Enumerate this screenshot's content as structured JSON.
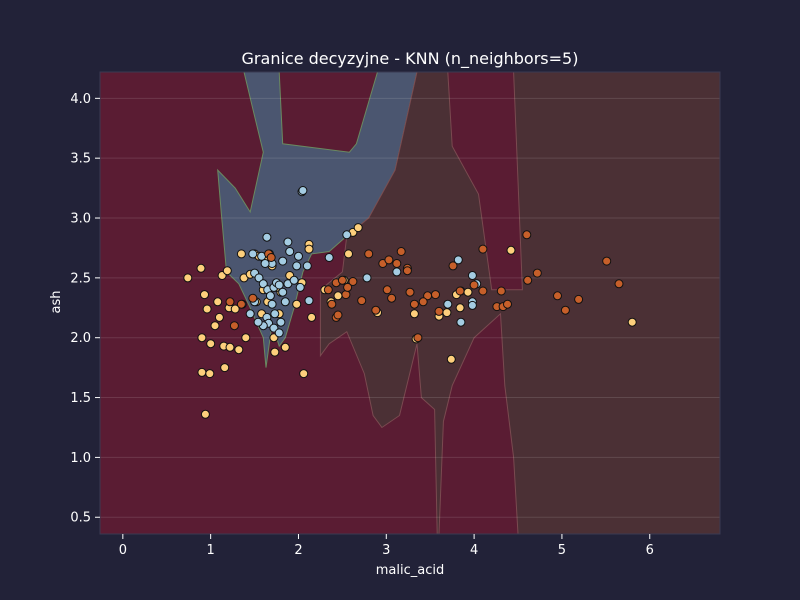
{
  "chart_data": {
    "type": "scatter",
    "title": "Granice decyzyjne - KNN (n_neighbors=5)",
    "xlabel": "malic_acid",
    "ylabel": "ash",
    "xlim": [
      -0.26,
      6.8
    ],
    "ylim": [
      0.36,
      4.22
    ],
    "xticks": [
      0,
      1,
      2,
      3,
      4,
      5,
      6
    ],
    "yticks": [
      0.5,
      1.0,
      1.5,
      2.0,
      2.5,
      3.0,
      3.5,
      4.0
    ],
    "xtick_labels": [
      "0",
      "1",
      "2",
      "3",
      "4",
      "5",
      "6"
    ],
    "ytick_labels": [
      "0.5",
      "1.0",
      "1.5",
      "2.0",
      "2.5",
      "3.0",
      "3.5",
      "4.0"
    ],
    "grid": true,
    "colors": {
      "background": "#222238",
      "region_class_0": "#5a1c33",
      "region_class_1": "#4b5670",
      "region_class_2": "#4b3035",
      "point_class_0": "#fdcf7c",
      "point_class_1": "#a4cce2",
      "point_class_2": "#c65f2a",
      "text": "#ffffff"
    },
    "regions": [
      {
        "class": 1,
        "polygon": [
          [
            1.38,
            4.22
          ],
          [
            1.78,
            4.22
          ],
          [
            1.82,
            3.62
          ],
          [
            2.58,
            3.55
          ],
          [
            2.66,
            3.62
          ],
          [
            2.9,
            4.22
          ],
          [
            3.35,
            4.22
          ],
          [
            3.1,
            3.4
          ],
          [
            2.8,
            3.0
          ],
          [
            2.55,
            2.85
          ],
          [
            2.35,
            2.72
          ],
          [
            2.15,
            2.7
          ],
          [
            2.05,
            2.55
          ],
          [
            1.95,
            2.25
          ],
          [
            1.85,
            2.0
          ],
          [
            1.78,
            1.93
          ],
          [
            1.7,
            2.12
          ],
          [
            1.63,
            1.75
          ],
          [
            1.6,
            2.0
          ],
          [
            1.45,
            2.25
          ],
          [
            1.32,
            2.45
          ],
          [
            1.18,
            2.55
          ],
          [
            1.12,
            3.05
          ],
          [
            1.08,
            3.4
          ],
          [
            1.28,
            3.25
          ],
          [
            1.45,
            3.05
          ],
          [
            1.6,
            3.55
          ],
          [
            1.5,
            3.85
          ]
        ]
      },
      {
        "class": 2,
        "polygon": [
          [
            3.35,
            4.22
          ],
          [
            3.7,
            4.22
          ],
          [
            3.75,
            3.6
          ],
          [
            4.05,
            3.2
          ],
          [
            4.2,
            2.4
          ],
          [
            4.55,
            2.4
          ],
          [
            4.45,
            4.22
          ],
          [
            6.8,
            4.22
          ],
          [
            6.8,
            0.36
          ],
          [
            4.5,
            0.36
          ],
          [
            4.45,
            1.0
          ],
          [
            4.35,
            1.6
          ],
          [
            4.3,
            2.2
          ],
          [
            4.0,
            2.0
          ],
          [
            3.75,
            1.6
          ],
          [
            3.65,
            1.3
          ],
          [
            3.6,
            0.36
          ],
          [
            3.58,
            0.36
          ],
          [
            3.55,
            1.4
          ],
          [
            3.4,
            1.5
          ],
          [
            3.35,
            1.95
          ],
          [
            3.15,
            1.35
          ],
          [
            2.95,
            1.25
          ],
          [
            2.85,
            1.35
          ],
          [
            2.75,
            1.7
          ],
          [
            2.55,
            2.05
          ],
          [
            2.35,
            1.95
          ],
          [
            2.25,
            1.85
          ],
          [
            2.25,
            2.4
          ],
          [
            2.5,
            2.55
          ],
          [
            2.55,
            2.85
          ],
          [
            2.8,
            3.0
          ],
          [
            3.1,
            3.4
          ]
        ]
      }
    ],
    "series": [
      {
        "name": "class_0",
        "points": [
          [
            0.74,
            2.5
          ],
          [
            0.89,
            2.58
          ],
          [
            0.93,
            2.36
          ],
          [
            0.9,
            2.0
          ],
          [
            1.0,
            1.95
          ],
          [
            0.96,
            2.24
          ],
          [
            1.08,
            2.3
          ],
          [
            1.05,
            2.1
          ],
          [
            1.1,
            2.17
          ],
          [
            1.13,
            2.52
          ],
          [
            1.19,
            2.56
          ],
          [
            1.21,
            2.25
          ],
          [
            1.15,
            1.93
          ],
          [
            1.22,
            1.92
          ],
          [
            1.28,
            2.24
          ],
          [
            1.32,
            1.9
          ],
          [
            1.35,
            2.7
          ],
          [
            1.38,
            2.5
          ],
          [
            1.4,
            2.0
          ],
          [
            1.45,
            2.53
          ],
          [
            1.5,
            2.7
          ],
          [
            1.55,
            2.68
          ],
          [
            1.52,
            2.3
          ],
          [
            1.58,
            2.2
          ],
          [
            1.6,
            2.4
          ],
          [
            1.62,
            2.65
          ],
          [
            1.67,
            2.7
          ],
          [
            1.7,
            2.6
          ],
          [
            1.72,
            2.0
          ],
          [
            1.73,
            1.88
          ],
          [
            1.78,
            2.2
          ],
          [
            1.8,
            2.38
          ],
          [
            1.85,
            1.92
          ],
          [
            1.9,
            2.52
          ],
          [
            1.98,
            2.28
          ],
          [
            2.04,
            2.46
          ],
          [
            2.12,
            2.78
          ],
          [
            2.12,
            2.74
          ],
          [
            2.15,
            2.17
          ],
          [
            2.06,
            1.7
          ],
          [
            2.62,
            2.88
          ],
          [
            2.68,
            2.92
          ],
          [
            0.9,
            1.71
          ],
          [
            0.99,
            1.7
          ],
          [
            1.16,
            1.75
          ],
          [
            0.94,
            1.36
          ],
          [
            3.8,
            2.36
          ],
          [
            3.85,
            2.39
          ],
          [
            3.69,
            2.21
          ],
          [
            3.6,
            2.18
          ],
          [
            3.84,
            2.25
          ],
          [
            3.93,
            2.38
          ],
          [
            5.8,
            2.13
          ],
          [
            4.42,
            2.73
          ],
          [
            3.74,
            1.82
          ],
          [
            3.32,
            2.2
          ],
          [
            2.9,
            2.21
          ],
          [
            2.57,
            2.7
          ],
          [
            2.52,
            2.48
          ],
          [
            2.45,
            2.35
          ],
          [
            2.37,
            2.3
          ],
          [
            2.3,
            2.4
          ],
          [
            3.34,
            1.99
          ],
          [
            1.65,
            2.3
          ],
          [
            1.75,
            2.42
          ]
        ]
      },
      {
        "name": "class_1",
        "points": [
          [
            2.04,
            3.22
          ],
          [
            2.05,
            3.23
          ],
          [
            1.64,
            2.84
          ],
          [
            1.88,
            2.8
          ],
          [
            1.9,
            2.72
          ],
          [
            2.0,
            2.68
          ],
          [
            1.82,
            2.64
          ],
          [
            1.7,
            2.62
          ],
          [
            1.62,
            2.62
          ],
          [
            1.58,
            2.68
          ],
          [
            1.48,
            2.7
          ],
          [
            1.5,
            2.54
          ],
          [
            1.55,
            2.5
          ],
          [
            1.6,
            2.45
          ],
          [
            1.65,
            2.4
          ],
          [
            1.68,
            2.35
          ],
          [
            1.72,
            2.42
          ],
          [
            1.75,
            2.46
          ],
          [
            1.78,
            2.44
          ],
          [
            1.82,
            2.38
          ],
          [
            1.85,
            2.3
          ],
          [
            1.88,
            2.45
          ],
          [
            1.95,
            2.48
          ],
          [
            1.98,
            2.6
          ],
          [
            2.02,
            2.42
          ],
          [
            1.7,
            2.28
          ],
          [
            1.73,
            2.2
          ],
          [
            1.64,
            2.17
          ],
          [
            1.66,
            2.12
          ],
          [
            1.72,
            2.08
          ],
          [
            1.78,
            2.04
          ],
          [
            1.6,
            2.1
          ],
          [
            1.54,
            2.13
          ],
          [
            1.5,
            2.3
          ],
          [
            1.45,
            2.2
          ],
          [
            1.36,
            2.28
          ],
          [
            2.1,
            2.6
          ],
          [
            2.12,
            2.31
          ],
          [
            2.35,
            2.67
          ],
          [
            2.55,
            2.86
          ],
          [
            2.78,
            2.5
          ],
          [
            3.12,
            2.55
          ],
          [
            3.82,
            2.65
          ],
          [
            3.98,
            2.52
          ],
          [
            4.03,
            2.45
          ],
          [
            3.7,
            2.28
          ],
          [
            3.98,
            2.3
          ],
          [
            3.98,
            2.27
          ],
          [
            3.85,
            2.13
          ],
          [
            1.8,
            2.13
          ]
        ]
      },
      {
        "name": "class_2",
        "points": [
          [
            1.35,
            2.28
          ],
          [
            1.48,
            2.33
          ],
          [
            1.66,
            2.7
          ],
          [
            1.69,
            2.67
          ],
          [
            2.34,
            2.4
          ],
          [
            2.38,
            2.28
          ],
          [
            2.43,
            2.46
          ],
          [
            2.5,
            2.48
          ],
          [
            2.54,
            2.36
          ],
          [
            2.62,
            2.47
          ],
          [
            2.72,
            2.31
          ],
          [
            2.8,
            2.7
          ],
          [
            2.88,
            2.23
          ],
          [
            2.96,
            2.62
          ],
          [
            3.03,
            2.65
          ],
          [
            3.12,
            2.62
          ],
          [
            3.17,
            2.72
          ],
          [
            3.24,
            2.58
          ],
          [
            3.24,
            2.56
          ],
          [
            3.01,
            2.4
          ],
          [
            3.06,
            2.33
          ],
          [
            3.27,
            2.38
          ],
          [
            3.32,
            2.28
          ],
          [
            3.47,
            2.35
          ],
          [
            3.42,
            2.3
          ],
          [
            3.56,
            2.36
          ],
          [
            3.6,
            2.22
          ],
          [
            3.76,
            2.6
          ],
          [
            3.84,
            2.39
          ],
          [
            4.0,
            2.44
          ],
          [
            4.1,
            2.74
          ],
          [
            4.1,
            2.39
          ],
          [
            4.26,
            2.26
          ],
          [
            4.31,
            2.39
          ],
          [
            4.33,
            2.26
          ],
          [
            4.38,
            2.28
          ],
          [
            4.6,
            2.86
          ],
          [
            4.61,
            2.48
          ],
          [
            4.72,
            2.54
          ],
          [
            4.95,
            2.35
          ],
          [
            5.04,
            2.23
          ],
          [
            5.19,
            2.32
          ],
          [
            5.51,
            2.64
          ],
          [
            5.65,
            2.45
          ],
          [
            3.36,
            2.0
          ],
          [
            2.43,
            2.17
          ],
          [
            2.56,
            2.42
          ],
          [
            1.27,
            2.1
          ],
          [
            1.22,
            2.3
          ],
          [
            2.45,
            2.19
          ]
        ]
      }
    ]
  }
}
